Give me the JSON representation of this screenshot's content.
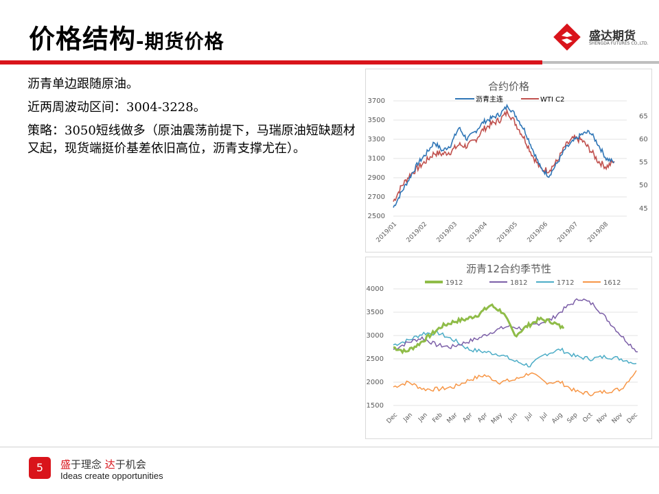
{
  "header": {
    "title_main": "价格结构",
    "title_sub": "-期货价格",
    "logo_cn": "盛达期货",
    "logo_en": "SHENGDA FUTURES CO.,LTD."
  },
  "body": {
    "lines": [
      "沥青单边跟随原油。",
      "近两周波动区间：3004-3228。",
      "策略：3050短线做多（原油震荡前提下，马瑞原油短缺题材又起，现货端挺价基差依旧高位，沥青支撑尤在）。"
    ]
  },
  "footer": {
    "page_number": "5",
    "slogan_part1": "盛",
    "slogan_part2": "于理念 ",
    "slogan_part3": "达",
    "slogan_part4": "于机会",
    "slogan_en": "Ideas create opportunities"
  },
  "colors": {
    "brand_red": "#d9141b",
    "blue": "#2e75b6",
    "red": "#c0504d",
    "green": "#8fbc48",
    "purple": "#7b5ea7",
    "teal": "#4bacc6",
    "orange": "#f79646"
  },
  "chart_data": [
    {
      "type": "line",
      "title": "合约价格",
      "x_labels": [
        "2019/01",
        "2019/02",
        "2019/03",
        "2019/04",
        "2019/05",
        "2019/06",
        "2019/07",
        "2019/08"
      ],
      "y_left_ticks": [
        2500,
        2700,
        2900,
        3100,
        3300,
        3500,
        3700
      ],
      "y_right_ticks": [
        45,
        50,
        55,
        60,
        65
      ],
      "ylim_left": [
        2500,
        3700
      ],
      "ylim_right": [
        43.33,
        68.33
      ],
      "legend_position": "top",
      "series": [
        {
          "name": "沥青主连",
          "axis": "left",
          "color": "#2e75b6",
          "values": [
            2590,
            2750,
            2900,
            3050,
            3150,
            3270,
            3180,
            3240,
            3420,
            3300,
            3380,
            3480,
            3520,
            3560,
            3650,
            3540,
            3400,
            3200,
            3000,
            2920,
            3050,
            3200,
            3280,
            3350,
            3380,
            3250,
            3100,
            3060
          ]
        },
        {
          "name": "WTI C2",
          "axis": "right",
          "color": "#c0504d",
          "values": [
            46.5,
            49.8,
            52.2,
            53.8,
            55.3,
            57.0,
            56.8,
            57.3,
            58.8,
            58.5,
            59.8,
            62.2,
            63.3,
            64.2,
            66.0,
            63.2,
            60.2,
            56.5,
            53.5,
            53.3,
            55.2,
            58.5,
            60.2,
            59.8,
            57.8,
            55.3,
            54.0,
            55.2
          ]
        }
      ]
    },
    {
      "type": "line",
      "title": "沥青12合约季节性",
      "x_labels": [
        "Dec",
        "Jan",
        "Jan",
        "Feb",
        "Mar",
        "Apr",
        "Apr",
        "May",
        "Jun",
        "Jul",
        "Jul",
        "Aug",
        "Sep",
        "Oct",
        "Nov",
        "Nov",
        "Dec"
      ],
      "y_ticks": [
        1500,
        2000,
        2500,
        3000,
        3500,
        4000
      ],
      "ylim": [
        1500,
        4000
      ],
      "legend_position": "top",
      "series": [
        {
          "name": "1912",
          "color": "#8fbc48",
          "values": [
            2750,
            2650,
            2800,
            3000,
            3200,
            3300,
            3350,
            3450,
            3650,
            3500,
            3000,
            3200,
            3350,
            3300,
            3150
          ]
        },
        {
          "name": "1812",
          "color": "#7b5ea7",
          "values": [
            2700,
            2850,
            2950,
            2800,
            2750,
            2850,
            2950,
            3100,
            3200,
            3150,
            3250,
            3350,
            3600,
            3800,
            3650,
            3300,
            2950,
            2650
          ]
        },
        {
          "name": "1712",
          "color": "#4bacc6",
          "values": [
            2800,
            2900,
            3050,
            3050,
            2900,
            2700,
            2650,
            2600,
            2450,
            2350,
            2600,
            2700,
            2550,
            2500,
            2550,
            2500,
            2400
          ]
        },
        {
          "name": "1612",
          "color": "#f79646",
          "values": [
            1900,
            2000,
            1850,
            1850,
            1900,
            2050,
            2150,
            2000,
            2050,
            2200,
            2000,
            2000,
            1800,
            1750,
            1800,
            1850,
            2250
          ]
        }
      ]
    }
  ]
}
